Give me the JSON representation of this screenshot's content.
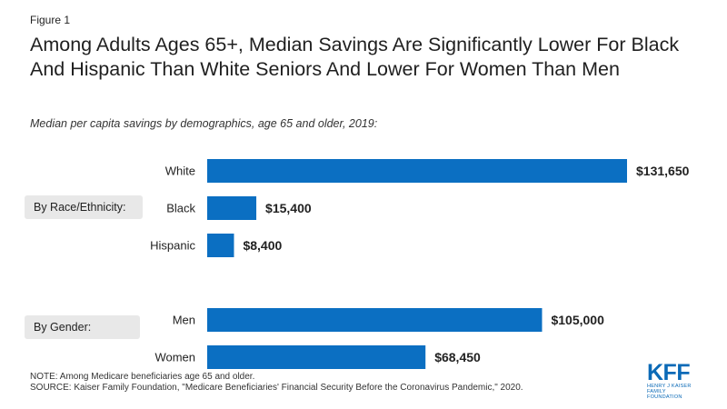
{
  "figure_label": "Figure 1",
  "title": "Among Adults Ages 65+, Median Savings Are Significantly Lower For Black And Hispanic Than White Seniors And Lower For Women Than Men",
  "subtitle": "Median per capita savings by demographics, age 65 and older, 2019:",
  "groups": [
    {
      "label": "By Race/Ethnicity:"
    },
    {
      "label": "By Gender:"
    }
  ],
  "colors": {
    "bar": "#0b6fc2",
    "group_box": "#e8e8e8"
  },
  "chart_data": {
    "type": "bar",
    "orientation": "horizontal",
    "categories": [
      "White",
      "Black",
      "Hispanic",
      "Men",
      "Women"
    ],
    "values": [
      131650,
      15400,
      8400,
      105000,
      68450
    ],
    "value_labels": [
      "$131,650",
      "$15,400",
      "$8,400",
      "$105,000",
      "$68,450"
    ],
    "category_groups": [
      "By Race/Ethnicity:",
      "By Race/Ethnicity:",
      "By Race/Ethnicity:",
      "By Gender:",
      "By Gender:"
    ],
    "xlim": [
      0,
      131650
    ],
    "grid": false,
    "title": "Among Adults Ages 65+, Median Savings Are Significantly Lower For Black And Hispanic Than White Seniors And Lower For Women Than Men",
    "subtitle": "Median per capita savings by demographics, age 65 and older, 2019:"
  },
  "note": "NOTE: Among Medicare beneficiaries age 65 and older.",
  "source": "SOURCE: Kaiser Family Foundation, \"Medicare Beneficiaries' Financial Security Before the Coronavirus Pandemic,\" 2020.",
  "logo": {
    "mark": "KFF",
    "line1": "HENRY J KAISER",
    "line2": "FAMILY FOUNDATION"
  }
}
